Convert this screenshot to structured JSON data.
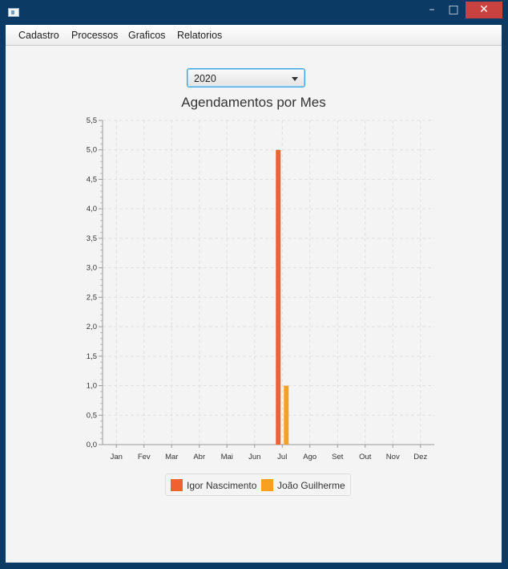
{
  "window": {
    "icon": "app-window-icon",
    "controls": {
      "minimize": "–",
      "maximize": "□",
      "close": "✕"
    }
  },
  "menu": {
    "items": [
      {
        "label": "Cadastro"
      },
      {
        "label": "Processos"
      },
      {
        "label": "Graficos"
      },
      {
        "label": "Relatorios"
      }
    ]
  },
  "year_select": {
    "value": "2020"
  },
  "chart_data": {
    "type": "bar",
    "title": "Agendamentos por Mes",
    "categories": [
      "Jan",
      "Fev",
      "Mar",
      "Abr",
      "Mai",
      "Jun",
      "Jul",
      "Ago",
      "Set",
      "Out",
      "Nov",
      "Dez"
    ],
    "series": [
      {
        "name": "Igor Nascimento",
        "color": "#f06130",
        "values": [
          0,
          0,
          0,
          0,
          0,
          0,
          5,
          0,
          0,
          0,
          0,
          0
        ]
      },
      {
        "name": "João Guilherme",
        "color": "#f9a021",
        "values": [
          0,
          0,
          0,
          0,
          0,
          0,
          1,
          0,
          0,
          0,
          0,
          0
        ]
      }
    ],
    "ylim": [
      0,
      5.5
    ],
    "yticks": [
      "0,0",
      "0,5",
      "1,0",
      "1,5",
      "2,0",
      "2,5",
      "3,0",
      "3,5",
      "4,0",
      "4,5",
      "5,0",
      "5,5"
    ],
    "grid": true,
    "legend": "bottom"
  }
}
